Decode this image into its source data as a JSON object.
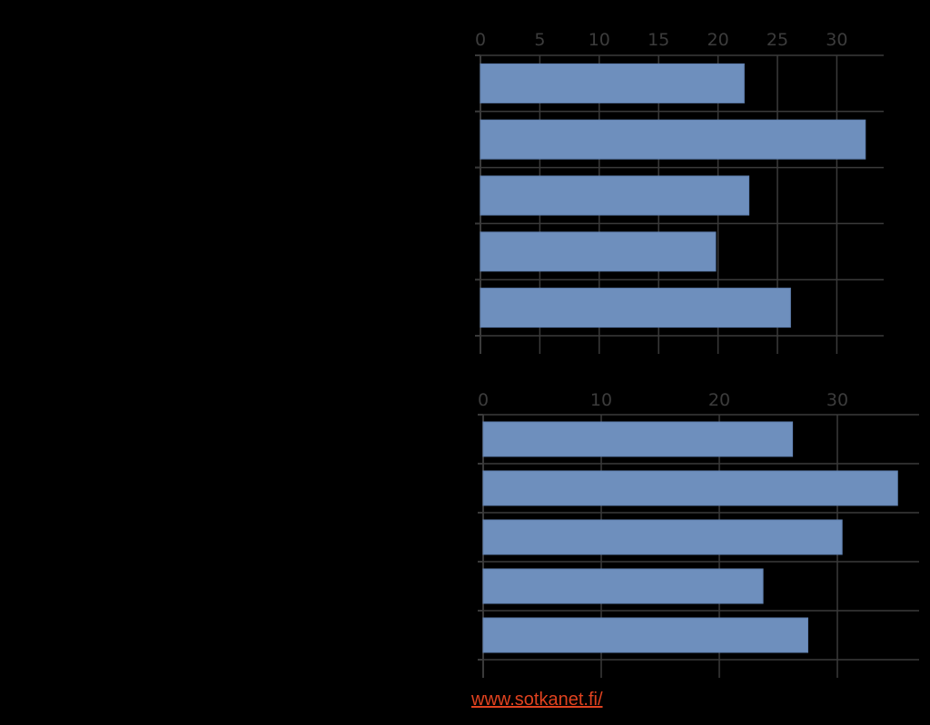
{
  "colors": {
    "background": "#000000",
    "bar": "#6e8fbd",
    "grid": "#3a3a3a",
    "tick_text": "#3c3c3c",
    "link": "#e0421f"
  },
  "chart_data": [
    {
      "type": "bar",
      "orientation": "horizontal",
      "categories": [
        "",
        "",
        "",
        "",
        ""
      ],
      "values": [
        22.2,
        32.4,
        22.6,
        19.8,
        26.1
      ],
      "xlim": [
        0,
        34
      ],
      "xticks": [
        "0",
        "5",
        "10",
        "15",
        "20",
        "25",
        "30"
      ],
      "grid": true,
      "title": "",
      "xlabel": "",
      "ylabel": ""
    },
    {
      "type": "bar",
      "orientation": "horizontal",
      "categories": [
        "",
        "",
        "",
        "",
        ""
      ],
      "values": [
        26.2,
        35.1,
        30.4,
        23.7,
        27.5
      ],
      "xlim": [
        0,
        37
      ],
      "xticks": [
        "0",
        "10",
        "20",
        "30"
      ],
      "grid": true,
      "title": "",
      "xlabel": "",
      "ylabel": ""
    }
  ],
  "source": {
    "link_text": "www.sotkanet.fi/"
  }
}
